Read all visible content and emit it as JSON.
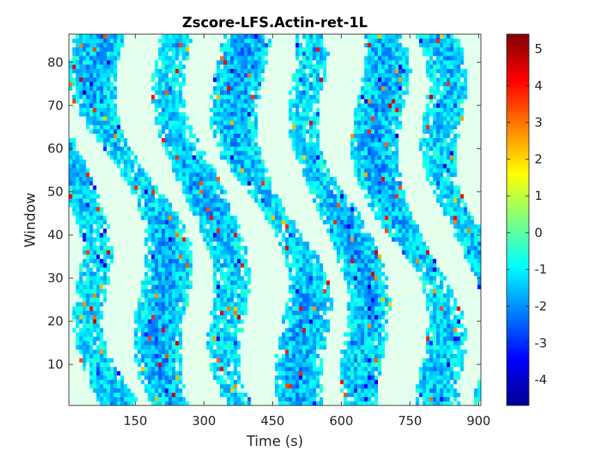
{
  "chart_data": {
    "type": "heatmap",
    "title": "Zscore-LFS.Actin-ret-1L",
    "xlabel": "Time (s)",
    "ylabel": "Window",
    "xlim": [
      5,
      905
    ],
    "ylim": [
      0.5,
      86.5
    ],
    "xticks": [
      150,
      300,
      450,
      600,
      750,
      900
    ],
    "yticks": [
      10,
      20,
      30,
      40,
      50,
      60,
      70,
      80
    ],
    "colorbar": {
      "colormap": "jet",
      "clim": [
        -4.7,
        5.4
      ],
      "ticks": [
        -4,
        -3,
        -2,
        -1,
        0,
        1,
        2,
        3,
        4,
        5
      ],
      "pale_range": [
        -0.4,
        0.9
      ]
    },
    "grid": {
      "rows": 86,
      "cols": 120,
      "note": "diagonal banded z-score field; dominant values between -2 and 1, sparse extremes up to 5.4 and down to -4.7"
    }
  }
}
